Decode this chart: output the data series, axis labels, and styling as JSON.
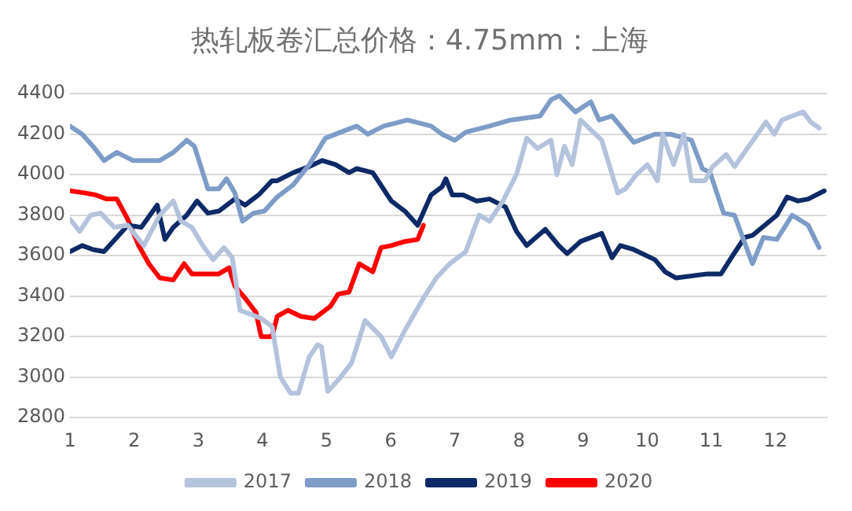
{
  "chart_data": {
    "type": "line",
    "title": "热轧板卷汇总价格：4.75mm：上海",
    "xlim": [
      1,
      12.8
    ],
    "xticks": [
      1,
      2,
      3,
      4,
      5,
      6,
      7,
      8,
      9,
      10,
      11,
      12
    ],
    "ylim": [
      2800,
      4400
    ],
    "yticks": [
      2800,
      3000,
      3200,
      3400,
      3600,
      3800,
      4000,
      4200,
      4400
    ],
    "grid": "y",
    "legend": "bottom",
    "marker": "none",
    "line_style": "solid",
    "series": [
      {
        "name": "2017",
        "color": "#b4c2dc",
        "x": [
          1.0,
          1.15,
          1.32,
          1.48,
          1.69,
          1.9,
          2.15,
          2.4,
          2.61,
          2.73,
          2.9,
          3.07,
          3.23,
          3.4,
          3.53,
          3.65,
          3.82,
          3.98,
          4.15,
          4.28,
          4.44,
          4.56,
          4.73,
          4.86,
          4.92,
          5.02,
          5.22,
          5.39,
          5.6,
          5.85,
          6.01,
          6.22,
          6.51,
          6.71,
          6.92,
          7.17,
          7.38,
          7.54,
          7.75,
          7.96,
          8.12,
          8.29,
          8.5,
          8.59,
          8.71,
          8.83,
          8.96,
          9.29,
          9.54,
          9.66,
          9.83,
          10.0,
          10.16,
          10.24,
          10.41,
          10.57,
          10.69,
          10.9,
          11.02,
          11.23,
          11.36,
          11.56,
          11.85,
          11.98,
          12.1,
          12.26,
          12.43,
          12.55,
          12.68
        ],
        "values": [
          3780,
          3720,
          3800,
          3810,
          3740,
          3750,
          3650,
          3800,
          3870,
          3770,
          3740,
          3650,
          3580,
          3640,
          3590,
          3330,
          3310,
          3290,
          3250,
          3000,
          2920,
          2920,
          3100,
          3160,
          3150,
          2930,
          3000,
          3070,
          3280,
          3200,
          3100,
          3230,
          3390,
          3490,
          3560,
          3620,
          3800,
          3770,
          3870,
          4000,
          4180,
          4130,
          4170,
          4000,
          4140,
          4050,
          4270,
          4170,
          3910,
          3930,
          4000,
          4050,
          3970,
          4200,
          4050,
          4200,
          3970,
          3970,
          4040,
          4100,
          4040,
          4130,
          4260,
          4200,
          4270,
          4290,
          4310,
          4260,
          4230
        ]
      },
      {
        "name": "2018",
        "color": "#7f9cc8",
        "x": [
          1.0,
          1.19,
          1.36,
          1.53,
          1.73,
          1.98,
          2.4,
          2.61,
          2.82,
          2.94,
          3.15,
          3.32,
          3.44,
          3.57,
          3.69,
          3.86,
          4.03,
          4.23,
          4.48,
          4.73,
          4.98,
          5.22,
          5.47,
          5.64,
          5.89,
          6.26,
          6.63,
          6.8,
          7.0,
          7.17,
          7.54,
          7.87,
          8.33,
          8.5,
          8.63,
          8.88,
          9.12,
          9.25,
          9.45,
          9.79,
          10.12,
          10.36,
          10.69,
          10.86,
          10.98,
          11.19,
          11.36,
          11.64,
          11.81,
          12.02,
          12.26,
          12.51,
          12.68
        ],
        "values": [
          4240,
          4200,
          4140,
          4070,
          4110,
          4070,
          4070,
          4110,
          4170,
          4140,
          3930,
          3930,
          3980,
          3910,
          3770,
          3810,
          3820,
          3890,
          3950,
          4050,
          4180,
          4210,
          4240,
          4200,
          4240,
          4270,
          4240,
          4200,
          4170,
          4210,
          4240,
          4270,
          4290,
          4370,
          4390,
          4310,
          4360,
          4270,
          4290,
          4160,
          4200,
          4200,
          4170,
          4030,
          4010,
          3810,
          3800,
          3560,
          3690,
          3680,
          3800,
          3750,
          3640
        ]
      },
      {
        "name": "2019",
        "color": "#0d2a66",
        "x": [
          1.0,
          1.19,
          1.36,
          1.53,
          1.73,
          1.9,
          2.11,
          2.36,
          2.48,
          2.61,
          2.82,
          2.98,
          3.15,
          3.32,
          3.57,
          3.73,
          3.94,
          4.15,
          4.23,
          4.48,
          4.73,
          4.93,
          5.14,
          5.35,
          5.47,
          5.72,
          6.01,
          6.22,
          6.42,
          6.63,
          6.8,
          6.86,
          6.96,
          7.13,
          7.34,
          7.54,
          7.79,
          7.96,
          8.12,
          8.41,
          8.62,
          8.75,
          8.96,
          9.29,
          9.45,
          9.58,
          9.79,
          10.12,
          10.28,
          10.45,
          10.94,
          11.15,
          11.31,
          11.52,
          11.64,
          12.02,
          12.18,
          12.35,
          12.51,
          12.76
        ],
        "values": [
          3620,
          3650,
          3630,
          3620,
          3690,
          3750,
          3740,
          3850,
          3680,
          3740,
          3800,
          3870,
          3810,
          3820,
          3880,
          3850,
          3900,
          3970,
          3970,
          4010,
          4040,
          4070,
          4050,
          4010,
          4030,
          4010,
          3870,
          3820,
          3750,
          3900,
          3940,
          3980,
          3900,
          3900,
          3870,
          3880,
          3840,
          3720,
          3650,
          3730,
          3650,
          3610,
          3670,
          3710,
          3590,
          3650,
          3630,
          3580,
          3520,
          3490,
          3510,
          3510,
          3590,
          3690,
          3700,
          3800,
          3890,
          3870,
          3880,
          3920
        ]
      },
      {
        "name": "2020",
        "color": "#ff0000",
        "x": [
          1.0,
          1.23,
          1.4,
          1.57,
          1.73,
          1.9,
          2.07,
          2.23,
          2.4,
          2.61,
          2.78,
          2.9,
          3.15,
          3.32,
          3.48,
          3.57,
          3.73,
          3.9,
          3.98,
          4.15,
          4.23,
          4.4,
          4.6,
          4.81,
          5.06,
          5.18,
          5.35,
          5.51,
          5.72,
          5.85,
          6.01,
          6.22,
          6.42,
          6.51
        ],
        "values": [
          3920,
          3910,
          3900,
          3880,
          3880,
          3780,
          3650,
          3560,
          3490,
          3480,
          3560,
          3510,
          3510,
          3510,
          3540,
          3450,
          3390,
          3320,
          3200,
          3200,
          3300,
          3330,
          3300,
          3290,
          3350,
          3410,
          3420,
          3560,
          3520,
          3640,
          3650,
          3670,
          3680,
          3750
        ]
      }
    ]
  }
}
